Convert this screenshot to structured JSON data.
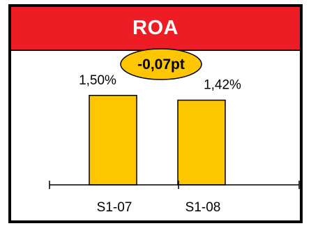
{
  "chart_data": {
    "type": "bar",
    "title": "ROA",
    "categories": [
      "S1-07",
      "S1-08"
    ],
    "values": [
      1.5,
      1.42
    ],
    "value_labels": [
      "1,50%",
      "1,42%"
    ],
    "unit": "%",
    "change_label": "-0,07pt",
    "ylim": [
      0,
      2.0
    ],
    "grid": false,
    "legend": "none",
    "xlabel": "",
    "ylabel": ""
  },
  "colors": {
    "header": "#ee1c24",
    "bar": "#fdc600",
    "badge": "#fdc600",
    "border": "#000000"
  }
}
